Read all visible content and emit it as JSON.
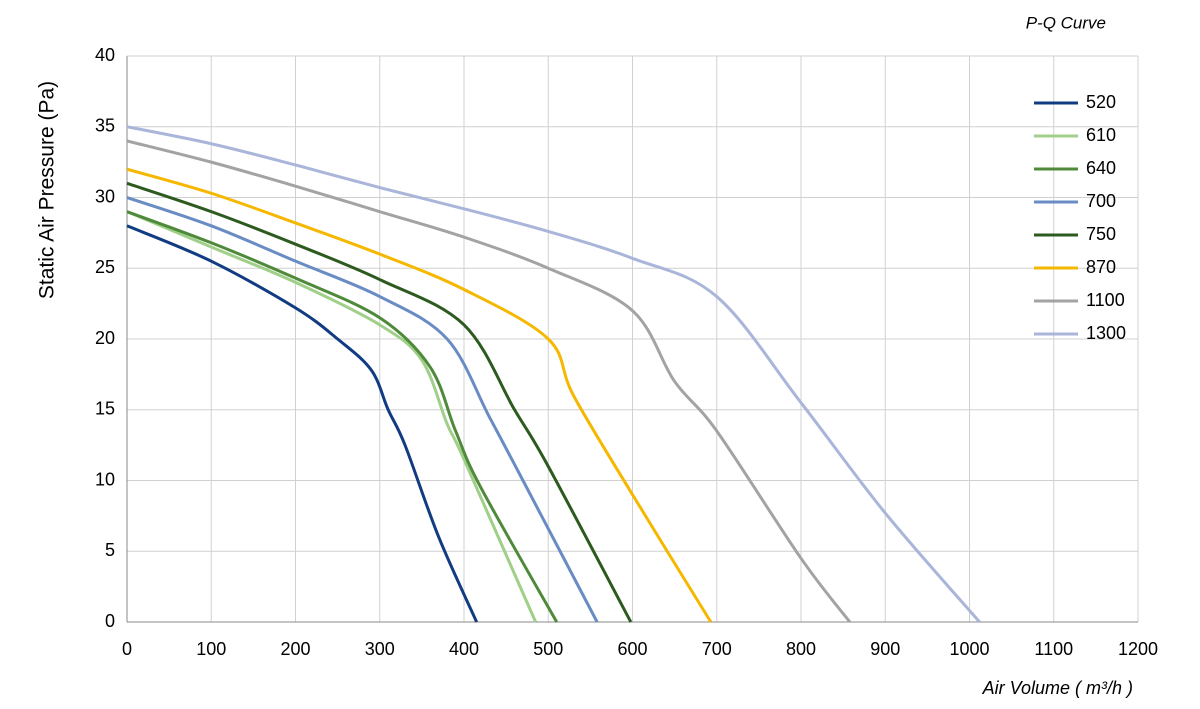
{
  "chart_data": {
    "type": "line",
    "title": "P-Q Curve",
    "x_label": "Air Volume ( m³/h )",
    "y_label": "Static Air Pressure  (Pa)",
    "xlim": [
      0,
      1200
    ],
    "xticks": [
      0,
      100,
      200,
      300,
      400,
      500,
      600,
      700,
      800,
      900,
      1000,
      1100,
      1200
    ],
    "ylim": [
      0,
      40
    ],
    "yticks": [
      0,
      5,
      10,
      15,
      20,
      25,
      30,
      35,
      40
    ],
    "grid": true,
    "legend": "right",
    "series": [
      {
        "name": "520",
        "color": "#123c82",
        "x": [
          0,
          100,
          200,
          250,
          290,
          310,
          330,
          370,
          415
        ],
        "values": [
          28,
          25.5,
          22.2,
          20,
          17.8,
          15,
          12.5,
          6,
          0
        ]
      },
      {
        "name": "610",
        "color": "#9fcf88",
        "x": [
          0,
          100,
          200,
          300,
          350,
          380,
          400,
          485
        ],
        "values": [
          29,
          26.5,
          24,
          21,
          18.5,
          14,
          11.5,
          0
        ]
      },
      {
        "name": "640",
        "color": "#4f8a3b",
        "x": [
          0,
          100,
          200,
          300,
          360,
          390,
          420,
          510
        ],
        "values": [
          29,
          26.8,
          24.3,
          21.5,
          18,
          13.5,
          9.5,
          0
        ]
      },
      {
        "name": "700",
        "color": "#6a8cc4",
        "x": [
          0,
          100,
          200,
          300,
          380,
          430,
          470,
          558
        ],
        "values": [
          30,
          28,
          25.5,
          23,
          20,
          14.5,
          10,
          0
        ]
      },
      {
        "name": "750",
        "color": "#2d5a1f",
        "x": [
          0,
          100,
          200,
          300,
          400,
          460,
          500,
          598
        ],
        "values": [
          31,
          29,
          26.7,
          24.2,
          21,
          15,
          11,
          0
        ]
      },
      {
        "name": "870",
        "color": "#f5b700",
        "x": [
          0,
          100,
          200,
          300,
          400,
          500,
          530,
          600,
          693
        ],
        "values": [
          32,
          30.3,
          28.2,
          26,
          23.5,
          20,
          16,
          9,
          0
        ]
      },
      {
        "name": "1100",
        "color": "#a3a3a3",
        "x": [
          0,
          100,
          200,
          300,
          400,
          500,
          600,
          650,
          700,
          800,
          858
        ],
        "values": [
          34,
          32.5,
          30.8,
          29,
          27.2,
          25,
          22,
          17,
          13.5,
          4.5,
          0
        ]
      },
      {
        "name": "1300",
        "color": "#a9b5d9",
        "x": [
          0,
          100,
          200,
          300,
          400,
          500,
          600,
          700,
          800,
          900,
          1012
        ],
        "values": [
          35,
          33.8,
          32.3,
          30.7,
          29.2,
          27.6,
          25.7,
          23,
          15.5,
          7.7,
          0
        ]
      }
    ]
  }
}
